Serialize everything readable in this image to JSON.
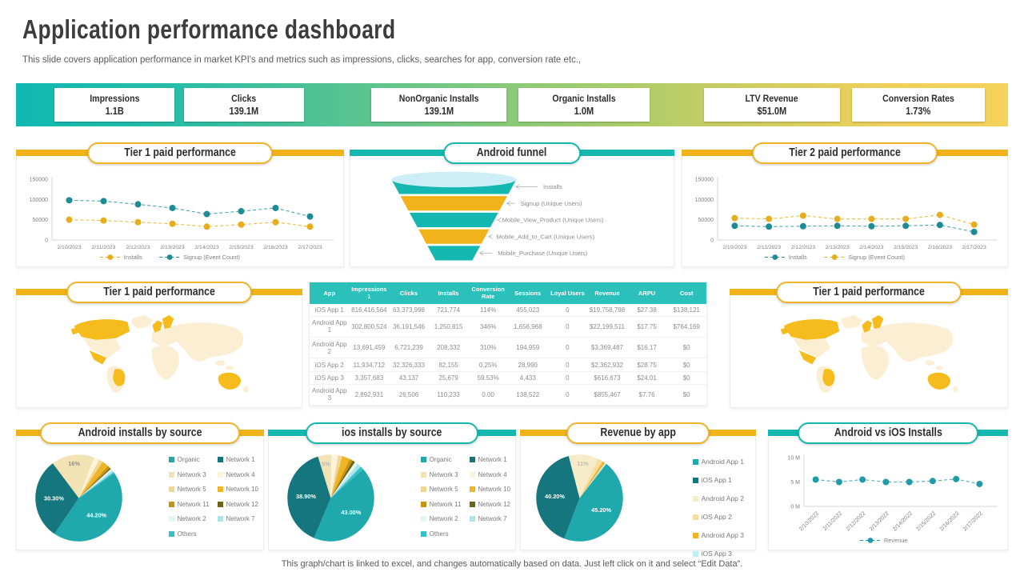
{
  "slide": {
    "title": "Application performance dashboard",
    "subtitle": "This slide covers application performance in market KPI's and metrics such as impressions, clicks, searches for app, conversion rate etc.,",
    "footer": "This graph/chart is linked to excel,  and changes automatically based on data. Just left click on it and select “Edit Data”."
  },
  "colors": {
    "teal": "#14b8b1",
    "dark_teal": "#15777d",
    "yellow": "#f2b31a",
    "pill_yellow": "#f0b428",
    "line_teal": "#1e8c96",
    "line_yellow": "#e7ad1c",
    "funnel_top": "#cdeef6",
    "table_header": "#2cc0bb",
    "map_base": "#fbeed3",
    "map_highlight": "#f6bb1c"
  },
  "kpis": [
    {
      "label": "Impressions",
      "value": "1.1B"
    },
    {
      "label": "Clicks",
      "value": "139.1M"
    },
    {
      "label": "NonOrganic Installs",
      "value": "139.1M"
    },
    {
      "label": "Organic Installs",
      "value": "1.0M"
    },
    {
      "label": "LTV Revenue",
      "value": "$51.0M"
    },
    {
      "label": "Conversion Rates",
      "value": "1.73%"
    }
  ],
  "panels": {
    "tier1_line": {
      "title": "Tier 1 paid performance"
    },
    "funnel": {
      "title": "Android funnel"
    },
    "tier2_line": {
      "title": "Tier 2 paid performance"
    },
    "map_left": {
      "title": "Tier 1 paid performance"
    },
    "map_right": {
      "title": "Tier 1 paid performance"
    },
    "pie_android": {
      "title": "Android installs by source"
    },
    "pie_ios": {
      "title": "ios installs by source"
    },
    "pie_revenue": {
      "title": "Revenue by app"
    },
    "installs_line": {
      "title": "Android  vs iOS Installs"
    }
  },
  "chart_data": [
    {
      "id": "tier1_line",
      "type": "line",
      "title": "Tier 1 paid performance",
      "x": [
        "2/10/2023",
        "2/11/2023",
        "2/12/2023",
        "2/13/2023",
        "2/14/2023",
        "2/15/2023",
        "2/16/2023",
        "2/17/2023"
      ],
      "series": [
        {
          "name": "Installs",
          "color": "#e7ad1c",
          "values": [
            50000,
            48000,
            44000,
            40000,
            33000,
            38000,
            44000,
            33000
          ]
        },
        {
          "name": "Signup (Event Count)",
          "color": "#1e8c96",
          "values": [
            98000,
            96000,
            88000,
            79000,
            64000,
            71000,
            79000,
            58000
          ]
        }
      ],
      "ylim": [
        0,
        150000
      ],
      "ytick_values": [
        0,
        50000,
        100000,
        150000
      ],
      "yticks": [
        "0",
        "50000",
        "100000",
        "150000"
      ],
      "x_rotated": false,
      "legend_position": "bottom",
      "grid": false
    },
    {
      "id": "android_funnel",
      "type": "funnel",
      "title": "Android funnel",
      "stages": [
        "Installs",
        "Signup (Unique Users)",
        "Mobile_View_Product  (Unique Users)",
        "Mobile_Add_to_Cart  (Unique Users)",
        "Mobile_Purchase  (Unique Users)"
      ]
    },
    {
      "id": "tier2_line",
      "type": "line",
      "title": "Tier 2 paid performance",
      "x": [
        "2/10/2023",
        "2/11/2023",
        "2/12/2023",
        "2/13/2023",
        "2/14/2023",
        "2/15/2023",
        "2/16/2023",
        "2/17/2023"
      ],
      "series": [
        {
          "name": "Installs",
          "color": "#1e8c96",
          "values": [
            35000,
            33000,
            34000,
            35000,
            34000,
            35000,
            37000,
            20000
          ]
        },
        {
          "name": "Signup (Event Count)",
          "color": "#e7ad1c",
          "values": [
            54000,
            52000,
            60000,
            52000,
            52000,
            52000,
            62000,
            38000
          ]
        }
      ],
      "ylim": [
        0,
        150000
      ],
      "ytick_values": [
        0,
        50000,
        100000,
        150000
      ],
      "yticks": [
        "0",
        "50000",
        "100000",
        "150000"
      ],
      "x_rotated": false,
      "legend_position": "bottom",
      "grid": false
    },
    {
      "id": "tier1_map",
      "type": "map",
      "title": "Tier 1 paid performance",
      "highlighted_regions": [
        "Canada",
        "Mexico",
        "Brazil",
        "United Kingdom",
        "Scandinavia",
        "Australia"
      ]
    },
    {
      "id": "app_table",
      "type": "table",
      "headers": [
        "App",
        "Impressions  1",
        "Clicks",
        "Installs",
        "Conversion Rate",
        "Sessions",
        "Loyal  Users",
        "Revenue",
        "ARPU",
        "Cost"
      ],
      "rows": [
        [
          "iOS App 1",
          "816,416,564",
          "63,373,998",
          "721,774",
          "114%",
          "455,023",
          "0",
          "$19,758,798",
          "$27.38",
          "$138,121"
        ],
        [
          "Android App 1",
          "302,800,524",
          "36,191,546",
          "1,250,815",
          "346%",
          "1,656,968",
          "0",
          "$22,199,511",
          "$17.75",
          "$764,169"
        ],
        [
          "Android App 2",
          "13,691,459",
          "6,721,239",
          "208,332",
          "310%",
          "194,959",
          "0",
          "$3,369,487",
          "$16.17",
          "$0"
        ],
        [
          "iOS App 2",
          "11,934,712",
          "32,326,333",
          "82,155",
          "0.25%",
          "28,990",
          "0",
          "$2,362,932",
          "$28.75",
          "$0"
        ],
        [
          "iOS App 3",
          "3,357,683",
          "43,137",
          "25,679",
          "59.53%",
          "4,433",
          "0",
          "$616,673",
          "$24.01",
          "$0"
        ],
        [
          "Android App 3",
          "2,892,931",
          "26,506",
          "110,233",
          "0.00",
          "138,522",
          "0",
          "$855,467",
          "$7.76",
          "$0"
        ]
      ]
    },
    {
      "id": "android_pie",
      "type": "pie",
      "title": "Android installs by source",
      "start": 55,
      "slices": [
        {
          "name": "Organic",
          "value": 44.2,
          "color": "#1fa9ad",
          "label": "44.20%",
          "label_color": "#ffffff"
        },
        {
          "name": "Network 1",
          "value": 30.3,
          "color": "#15777d",
          "label": "30.30%",
          "label_color": "#ffffff"
        },
        {
          "name": "Network 3",
          "value": 16.0,
          "color": "#f2e3b4",
          "label": "16%",
          "label_color": "#8f8f8f"
        },
        {
          "name": "Network 4",
          "value": 2.0,
          "color": "#fdf3da"
        },
        {
          "name": "Network 5",
          "value": 1.5,
          "color": "#f0d894"
        },
        {
          "name": "Network 10",
          "value": 2.5,
          "color": "#f0b427"
        },
        {
          "name": "Network 11",
          "value": 1.0,
          "color": "#c9930f"
        },
        {
          "name": "Network 12",
          "value": 0.5,
          "color": "#6d6616"
        },
        {
          "name": "Network 2",
          "value": 0.7,
          "color": "#e3f6f6"
        },
        {
          "name": "Network 7",
          "value": 0.8,
          "color": "#abe7ea"
        },
        {
          "name": "Others",
          "value": 0.5,
          "color": "#35c1c7"
        }
      ]
    },
    {
      "id": "ios_pie",
      "type": "pie",
      "title": "ios installs by source",
      "start": 48,
      "slices": [
        {
          "name": "Organic",
          "value": 43.0,
          "color": "#1fa9ad",
          "label": "43.00%",
          "label_color": "#ffffff"
        },
        {
          "name": "Network 1",
          "value": 38.9,
          "color": "#15777d",
          "label": "38.90%",
          "label_color": "#ffffff"
        },
        {
          "name": "Network 3",
          "value": 5.0,
          "color": "#f2e3b4",
          "label": "5%",
          "label_color": "#b9b9b9"
        },
        {
          "name": "Network 4",
          "value": 2.5,
          "color": "#fdf3da"
        },
        {
          "name": "Network 5",
          "value": 1.5,
          "color": "#f0d894"
        },
        {
          "name": "Network 10",
          "value": 3.0,
          "color": "#f0b427"
        },
        {
          "name": "Network 11",
          "value": 1.2,
          "color": "#c9930f"
        },
        {
          "name": "Network 12",
          "value": 1.0,
          "color": "#6d6616"
        },
        {
          "name": "Network 2",
          "value": 1.2,
          "color": "#e3f6f6"
        },
        {
          "name": "Network 7",
          "value": 1.5,
          "color": "#abe7ea"
        },
        {
          "name": "Others",
          "value": 1.2,
          "color": "#35c1c7"
        }
      ]
    },
    {
      "id": "revenue_pie",
      "type": "pie",
      "title": "Revenue by app",
      "start": 38,
      "slices": [
        {
          "name": "Android App 1",
          "value": 45.2,
          "color": "#1fa9ad",
          "label": "45.20%",
          "label_color": "#ffffff"
        },
        {
          "name": "iOS App 1",
          "value": 40.2,
          "color": "#15777d",
          "label": "40.20%",
          "label_color": "#ffffff"
        },
        {
          "name": "Android App 2",
          "value": 11.0,
          "color": "#f7ecca",
          "label": "11%",
          "label_color": "#bdbdbd"
        },
        {
          "name": "iOS App 2",
          "value": 2.0,
          "color": "#f5dfa0"
        },
        {
          "name": "Android App 3",
          "value": 1.0,
          "color": "#f0b427"
        },
        {
          "name": "iOS App 3",
          "value": 0.6,
          "color": "#bfeef0"
        }
      ]
    },
    {
      "id": "installs_line",
      "type": "line",
      "title": "Android  vs iOS Installs",
      "x": [
        "2/10/2022",
        "2/11/2022",
        "2/12/2022",
        "2/13/2022",
        "2/14/2022",
        "2/15/2022",
        "2/16/2022",
        "2/17/2022"
      ],
      "series": [
        {
          "name": "Revenue",
          "color": "#1e9aa8",
          "values": [
            5.5,
            5.0,
            5.5,
            5.0,
            5.0,
            5.2,
            5.6,
            4.6
          ]
        }
      ],
      "ylim": [
        0,
        10
      ],
      "ytick_values": [
        0,
        5,
        10
      ],
      "yticks": [
        "0 M",
        "5 M",
        "10 M"
      ],
      "x_rotated": true,
      "legend_position": "bottom",
      "grid": false
    }
  ]
}
